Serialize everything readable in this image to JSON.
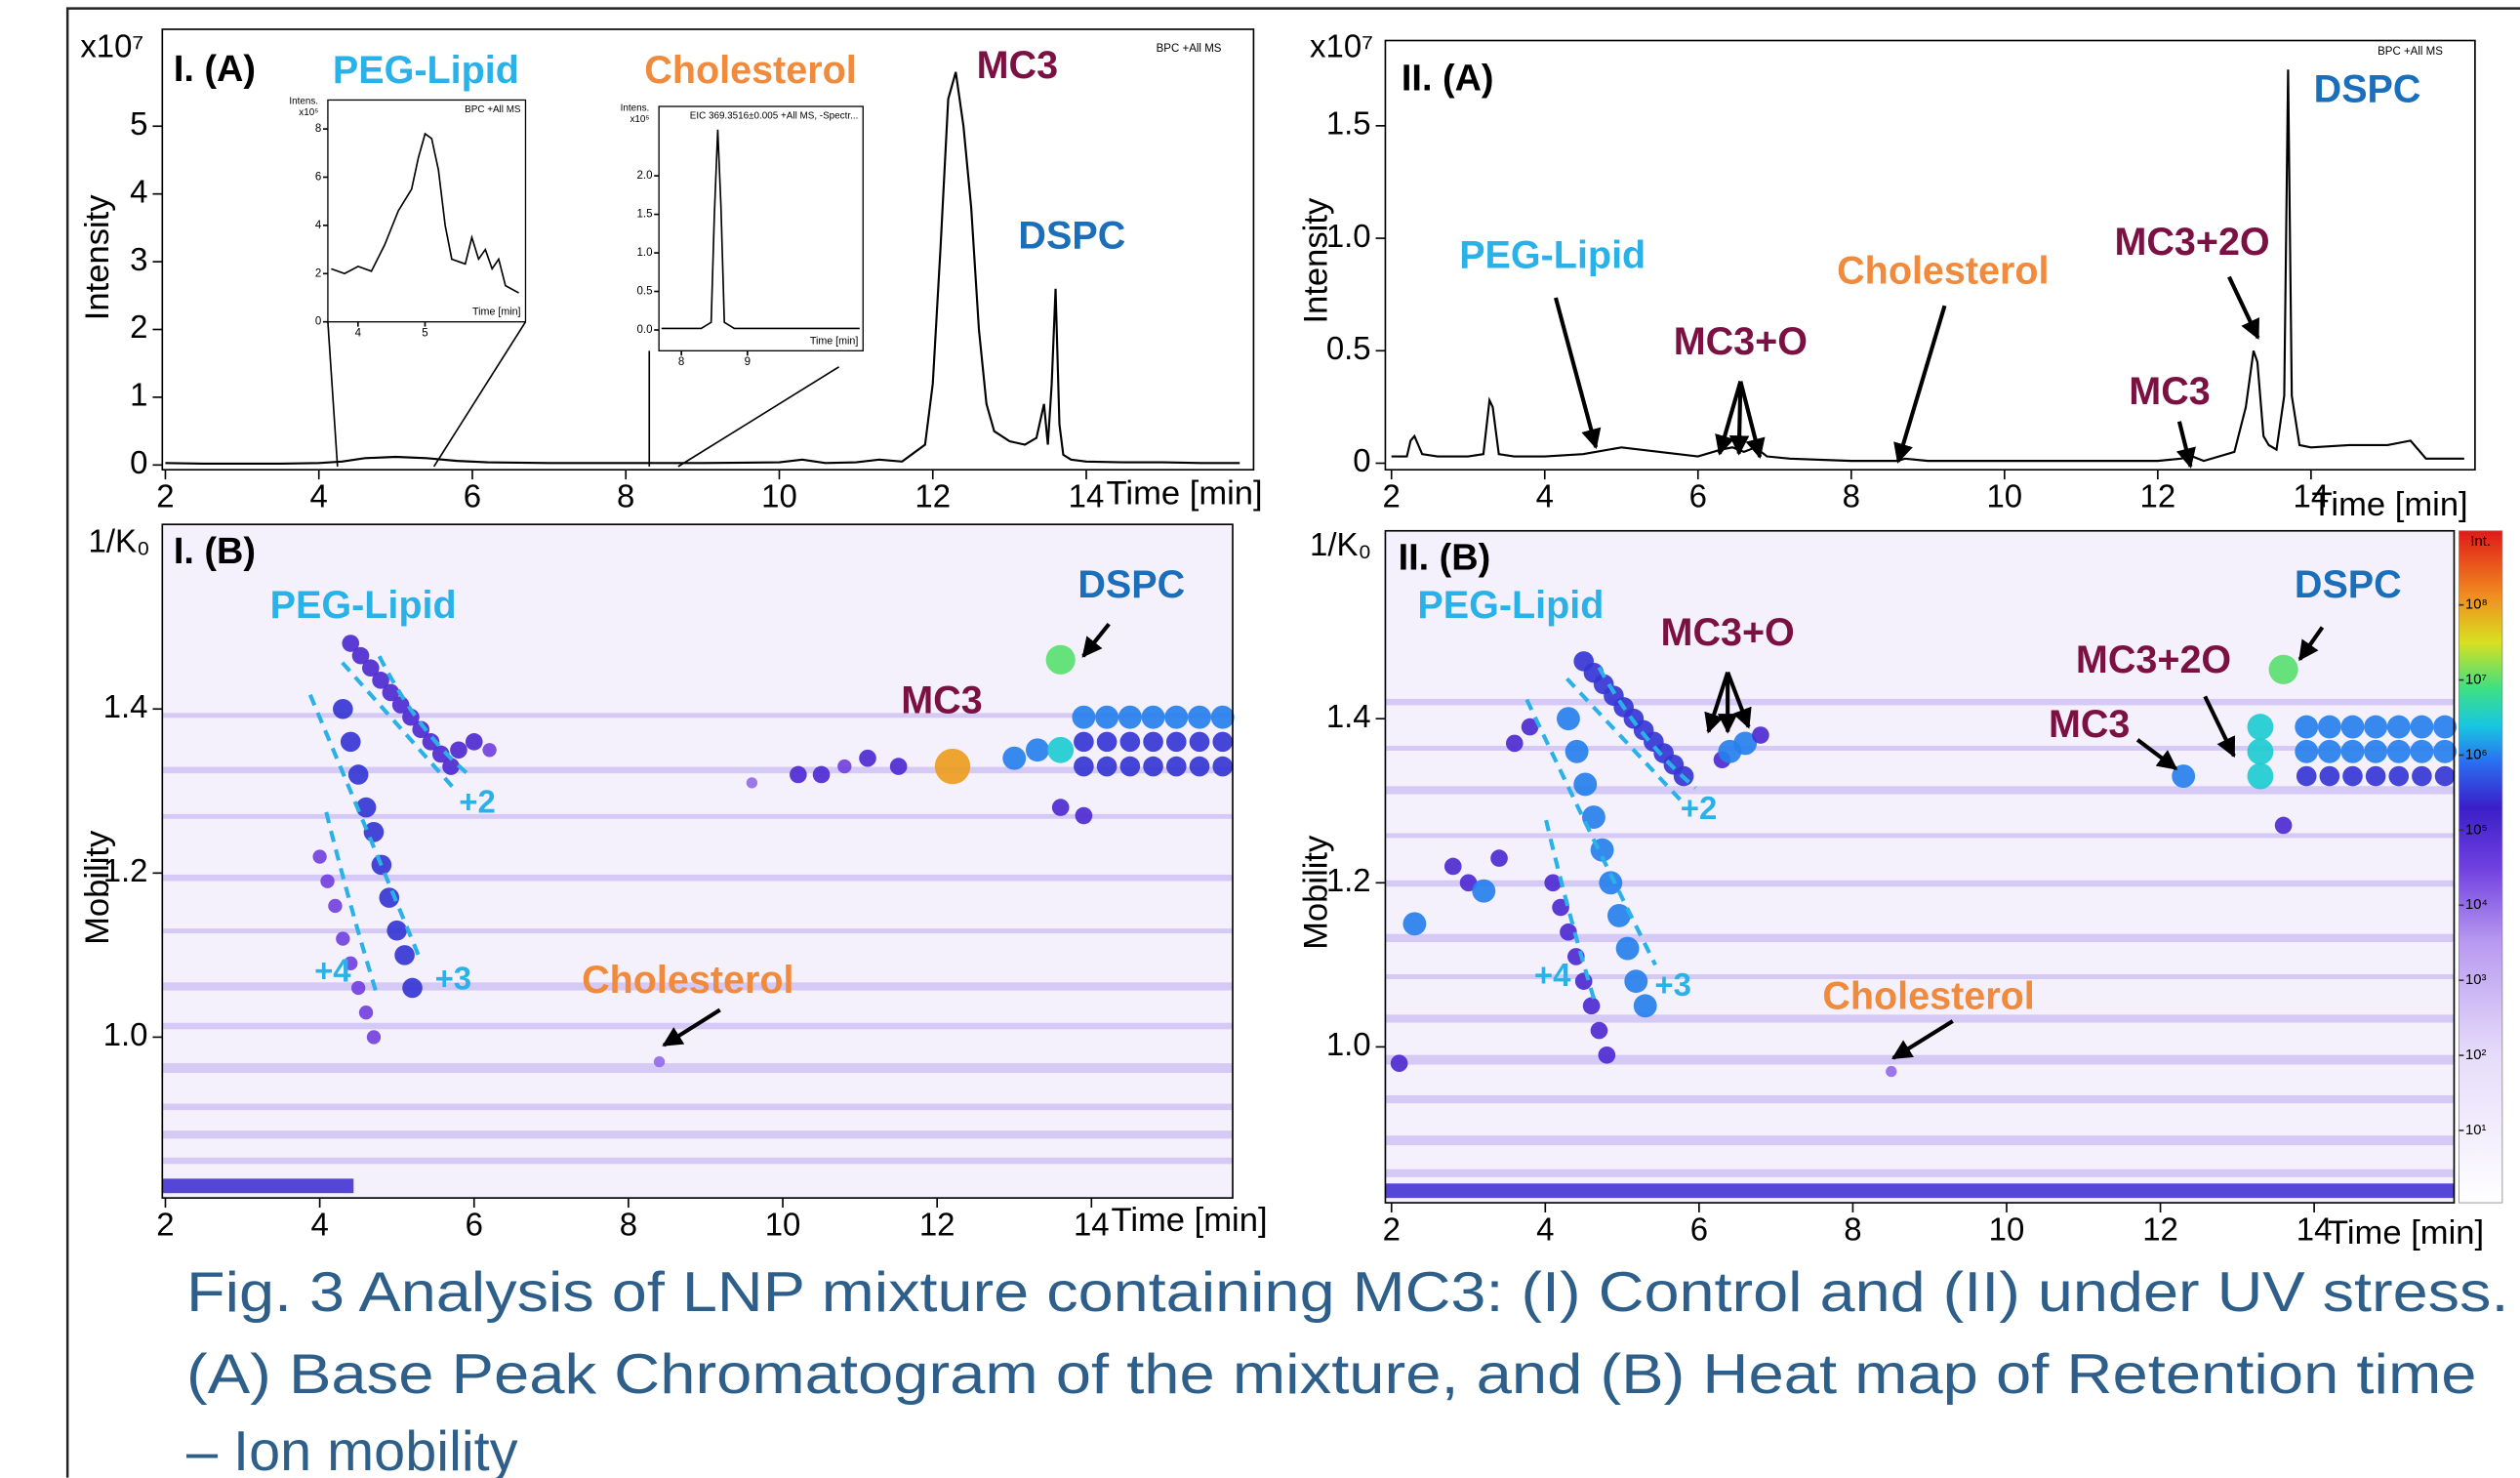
{
  "chart_data": [
    {
      "type": "line",
      "title": "I. (A)",
      "y_unit": "x10⁷",
      "ylabel": "Intensity",
      "xlabel": "Time [min]",
      "note": "BPC +All MS",
      "color": "#000000",
      "xlim": [
        1.96,
        16.18
      ],
      "ylim": [
        -0.07,
        6.43
      ],
      "xticks": [
        2,
        4,
        6,
        8,
        10,
        12,
        14
      ],
      "yticks": [
        0,
        1,
        2,
        3,
        4,
        5
      ],
      "x": [
        2,
        2.5,
        3,
        3.5,
        4,
        4.3,
        4.6,
        5,
        5.4,
        5.8,
        6.2,
        7,
        8,
        8.4,
        9,
        10,
        10.3,
        10.6,
        11,
        11.3,
        11.6,
        11.9,
        12.0,
        12.1,
        12.2,
        12.3,
        12.4,
        12.5,
        12.6,
        12.7,
        12.8,
        13.0,
        13.2,
        13.35,
        13.45,
        13.5,
        13.55,
        13.6,
        13.65,
        13.7,
        13.8,
        14,
        14.5,
        15,
        15.5,
        16
      ],
      "values": [
        0.03,
        0.02,
        0.02,
        0.02,
        0.03,
        0.05,
        0.1,
        0.12,
        0.1,
        0.06,
        0.04,
        0.03,
        0.03,
        0.03,
        0.03,
        0.04,
        0.08,
        0.03,
        0.04,
        0.08,
        0.05,
        0.3,
        1.2,
        3.2,
        5.4,
        5.8,
        5.0,
        3.8,
        2.0,
        0.9,
        0.5,
        0.35,
        0.3,
        0.4,
        0.9,
        0.3,
        1.2,
        2.6,
        0.6,
        0.15,
        0.08,
        0.05,
        0.04,
        0.04,
        0.03,
        0.03
      ],
      "annotations": [
        {
          "text": "PEG-Lipid",
          "color": "#2ab2e8"
        },
        {
          "text": "Cholesterol",
          "color": "#f08a3c"
        },
        {
          "text": "MC3",
          "color": "#7a1142"
        },
        {
          "text": "DSPC",
          "color": "#1b6fba"
        }
      ]
    },
    {
      "type": "heatmap",
      "title": "I. (B)",
      "y_unit": "1/K₀",
      "ylabel": "Mobility",
      "xlabel": "Time [min]",
      "xlim": [
        1.96,
        15.83
      ],
      "ylim": [
        0.804,
        1.625
      ],
      "xticks": [
        2,
        4,
        6,
        8,
        10,
        12,
        14
      ],
      "yticks": [
        {
          "value": 1,
          "label": "1.0"
        },
        1.2,
        1.4
      ],
      "x": [
        4.4,
        4.53,
        4.66,
        4.79,
        4.92,
        5.05,
        5.18,
        5.31,
        5.44,
        5.57,
        5.7,
        4.3,
        4.4,
        4.5,
        4.6,
        4.7,
        4.8,
        4.9,
        5.0,
        5.1,
        5.2,
        4.0,
        4.1,
        4.2,
        4.3,
        4.4,
        4.5,
        4.6,
        4.7,
        5.8,
        6.0,
        6.2,
        9.6,
        10.2,
        10.5,
        10.8,
        11.1,
        11.5,
        12.2,
        13.0,
        13.3,
        13.6,
        13.6,
        13.6,
        13.9,
        8.4,
        13.9,
        14.2,
        14.5,
        14.8,
        15.1,
        15.4,
        15.7,
        13.9,
        14.2,
        14.5,
        14.8,
        15.1,
        15.4,
        15.7,
        13.9,
        14.2,
        14.5,
        14.8,
        15.1,
        15.4,
        15.7
      ],
      "values": [
        1.48,
        1.465,
        1.45,
        1.435,
        1.42,
        1.405,
        1.39,
        1.375,
        1.36,
        1.345,
        1.33,
        1.4,
        1.36,
        1.32,
        1.28,
        1.25,
        1.21,
        1.17,
        1.13,
        1.1,
        1.06,
        1.22,
        1.19,
        1.16,
        1.12,
        1.09,
        1.06,
        1.03,
        1.0,
        1.35,
        1.36,
        1.35,
        1.31,
        1.32,
        1.32,
        1.33,
        1.34,
        1.33,
        1.33,
        1.34,
        1.35,
        1.46,
        1.35,
        1.28,
        1.27,
        0.97,
        1.39,
        1.39,
        1.39,
        1.39,
        1.39,
        1.39,
        1.39,
        1.36,
        1.36,
        1.36,
        1.36,
        1.36,
        1.36,
        1.36,
        1.33,
        1.33,
        1.33,
        1.33,
        1.33,
        1.33,
        1.33
      ],
      "intensity": [
        100000,
        100000,
        100000,
        100000,
        100000,
        100000,
        100000,
        100000,
        100000,
        100000,
        100000,
        300000,
        300000,
        300000,
        300000,
        300000,
        300000,
        300000,
        300000,
        300000,
        300000,
        30000,
        30000,
        30000,
        30000,
        30000,
        30000,
        30000,
        30000,
        100000,
        100000,
        30000,
        10000,
        100000,
        100000,
        30000,
        100000,
        100000,
        100000000,
        1000000,
        1000000,
        10000000,
        3000000,
        100000,
        100000,
        10000,
        1000000,
        1000000,
        1000000,
        1000000,
        1000000,
        1000000,
        1000000,
        300000,
        300000,
        300000,
        300000,
        300000,
        300000,
        300000,
        300000,
        300000,
        300000,
        300000,
        300000,
        300000,
        300000
      ],
      "annotations": [
        {
          "text": "PEG-Lipid",
          "color": "#2ab2e8"
        },
        {
          "text": "+2",
          "color": "#2ab2e8"
        },
        {
          "text": "+3",
          "color": "#2ab2e8"
        },
        {
          "text": "+4",
          "color": "#2ab2e8"
        },
        {
          "text": "DSPC",
          "color": "#1b6fba"
        },
        {
          "text": "MC3",
          "color": "#7a1142"
        },
        {
          "text": "Cholesterol",
          "color": "#f08a3c"
        }
      ]
    },
    {
      "type": "line",
      "title": "II. (A)",
      "y_unit": "x10⁷",
      "ylabel": "Intensity",
      "xlabel": "Time [min]",
      "note": "BPC +All MS",
      "color": "#000000",
      "xlim": [
        1.92,
        16.14
      ],
      "ylim": [
        -0.029,
        1.879
      ],
      "xticks": [
        2,
        4,
        6,
        8,
        10,
        12,
        14
      ],
      "yticks": [
        0,
        0.5,
        {
          "value": 1,
          "label": "1.0"
        },
        1.5
      ],
      "x": [
        2,
        2.2,
        2.25,
        2.3,
        2.4,
        2.6,
        3.0,
        3.2,
        3.28,
        3.32,
        3.4,
        3.6,
        4.0,
        4.5,
        5.0,
        5.5,
        6.0,
        6.3,
        6.45,
        6.6,
        6.75,
        6.9,
        7.2,
        8,
        8.6,
        8.7,
        9,
        10,
        11,
        12,
        12.3,
        12.45,
        12.6,
        13.0,
        13.15,
        13.25,
        13.3,
        13.38,
        13.45,
        13.55,
        13.65,
        13.7,
        13.75,
        13.85,
        14,
        14.5,
        15,
        15.3,
        15.5,
        16
      ],
      "values": [
        0.03,
        0.03,
        0.1,
        0.12,
        0.04,
        0.03,
        0.03,
        0.04,
        0.28,
        0.25,
        0.04,
        0.03,
        0.03,
        0.04,
        0.07,
        0.05,
        0.03,
        0.06,
        0.07,
        0.05,
        0.07,
        0.03,
        0.02,
        0.01,
        0.01,
        0.02,
        0.01,
        0.01,
        0.01,
        0.01,
        0.02,
        0.03,
        0.01,
        0.05,
        0.25,
        0.5,
        0.45,
        0.12,
        0.08,
        0.06,
        0.3,
        1.75,
        0.3,
        0.08,
        0.07,
        0.08,
        0.08,
        0.1,
        0.02,
        0.02
      ],
      "annotations": [
        {
          "text": "PEG-Lipid",
          "color": "#2ab2e8"
        },
        {
          "text": "MC3+O",
          "color": "#7a1142"
        },
        {
          "text": "Cholesterol",
          "color": "#f08a3c"
        },
        {
          "text": "MC3+2O",
          "color": "#7a1142"
        },
        {
          "text": "MC3",
          "color": "#7a1142"
        },
        {
          "text": "DSPC",
          "color": "#1b6fba"
        }
      ]
    },
    {
      "type": "heatmap",
      "title": "II. (B)",
      "y_unit": "1/K₀",
      "ylabel": "Mobility",
      "xlabel": "Time [min]",
      "xlim": [
        1.92,
        15.82
      ],
      "ylim": [
        0.81,
        1.629
      ],
      "xticks": [
        2,
        4,
        6,
        8,
        10,
        12,
        14
      ],
      "yticks": [
        {
          "value": 1,
          "label": "1.0"
        },
        1.2,
        1.4
      ],
      "x": [
        4.5,
        4.63,
        4.76,
        4.89,
        5.02,
        5.15,
        5.28,
        5.41,
        5.54,
        5.67,
        5.8,
        4.3,
        4.41,
        4.52,
        4.63,
        4.74,
        4.85,
        4.96,
        5.07,
        5.18,
        5.3,
        4.1,
        4.2,
        4.3,
        4.4,
        4.5,
        4.6,
        4.7,
        4.8,
        2.3,
        2.8,
        3.0,
        3.2,
        3.4,
        2.1,
        6.3,
        6.4,
        6.6,
        6.8,
        12.3,
        13.3,
        13.3,
        13.3,
        13.6,
        13.6,
        8.5,
        3.8,
        3.6,
        13.9,
        14.2,
        14.5,
        14.8,
        15.1,
        15.4,
        15.7,
        13.9,
        14.2,
        14.5,
        14.8,
        15.1,
        15.4,
        15.7,
        13.9,
        14.2,
        14.5,
        14.8,
        15.1,
        15.4,
        15.7
      ],
      "values": [
        1.47,
        1.456,
        1.442,
        1.428,
        1.414,
        1.4,
        1.386,
        1.372,
        1.358,
        1.344,
        1.33,
        1.4,
        1.36,
        1.32,
        1.28,
        1.24,
        1.2,
        1.16,
        1.12,
        1.08,
        1.05,
        1.2,
        1.17,
        1.14,
        1.11,
        1.08,
        1.05,
        1.02,
        0.99,
        1.15,
        1.22,
        1.2,
        1.19,
        1.23,
        0.98,
        1.35,
        1.36,
        1.37,
        1.38,
        1.33,
        1.39,
        1.36,
        1.33,
        1.46,
        1.27,
        0.97,
        1.39,
        1.37,
        1.39,
        1.39,
        1.39,
        1.39,
        1.39,
        1.39,
        1.39,
        1.36,
        1.36,
        1.36,
        1.36,
        1.36,
        1.36,
        1.36,
        1.33,
        1.33,
        1.33,
        1.33,
        1.33,
        1.33,
        1.33
      ],
      "intensity": [
        300000,
        300000,
        300000,
        300000,
        300000,
        300000,
        300000,
        300000,
        300000,
        300000,
        300000,
        1000000,
        1000000,
        1000000,
        1000000,
        1000000,
        1000000,
        1000000,
        1000000,
        1000000,
        1000000,
        100000,
        100000,
        100000,
        100000,
        100000,
        100000,
        100000,
        100000,
        1000000,
        100000,
        100000,
        1000000,
        100000,
        100000,
        100000,
        1000000,
        1000000,
        100000,
        1000000,
        3000000,
        3000000,
        3000000,
        10000000,
        100000,
        10000,
        100000,
        100000,
        1000000,
        1000000,
        1000000,
        1000000,
        1000000,
        1000000,
        1000000,
        1000000,
        1000000,
        1000000,
        1000000,
        1000000,
        1000000,
        1000000,
        300000,
        300000,
        300000,
        300000,
        300000,
        300000,
        300000
      ],
      "colorbar": {
        "label": "Int.",
        "ticks": [
          {
            "value": 10,
            "label": "10¹"
          },
          {
            "value": 100,
            "label": "10²"
          },
          {
            "value": 1000,
            "label": "10³"
          },
          {
            "value": 10000,
            "label": "10⁴"
          },
          {
            "value": 100000,
            "label": "10⁵"
          },
          {
            "value": 1000000,
            "label": "10⁶"
          },
          {
            "value": 10000000,
            "label": "10⁷"
          },
          {
            "value": 100000000,
            "label": "10⁸"
          }
        ]
      },
      "annotations": [
        {
          "text": "PEG-Lipid",
          "color": "#2ab2e8"
        },
        {
          "text": "MC3+O",
          "color": "#7a1142"
        },
        {
          "text": "+2",
          "color": "#2ab2e8"
        },
        {
          "text": "+3",
          "color": "#2ab2e8"
        },
        {
          "text": "+4",
          "color": "#2ab2e8"
        },
        {
          "text": "DSPC",
          "color": "#1b6fba"
        },
        {
          "text": "MC3+2O",
          "color": "#7a1142"
        },
        {
          "text": "MC3",
          "color": "#7a1142"
        },
        {
          "text": "Cholesterol",
          "color": "#f08a3c"
        }
      ]
    },
    {
      "type": "line",
      "y_unit": "x10⁵",
      "ylabel": "Intens.",
      "xlabel": "Time [min]",
      "note": "BPC +All MS",
      "color": "#000000",
      "xlim": [
        3.55,
        6.5
      ],
      "ylim": [
        0,
        9.2
      ],
      "xticks": [
        4,
        5
      ],
      "yticks": [
        0,
        2,
        4,
        6,
        8
      ],
      "x": [
        3.6,
        3.8,
        4.0,
        4.2,
        4.4,
        4.6,
        4.8,
        4.9,
        5.0,
        5.1,
        5.2,
        5.3,
        5.4,
        5.5,
        5.6,
        5.7,
        5.8,
        5.9,
        6.0,
        6.1,
        6.2,
        6.4
      ],
      "values": [
        2.2,
        2.0,
        2.3,
        2.1,
        3.2,
        4.6,
        5.5,
        6.8,
        7.8,
        7.6,
        6.3,
        4.0,
        2.6,
        2.5,
        2.4,
        3.5,
        2.6,
        3.0,
        2.2,
        2.6,
        1.5,
        1.2
      ]
    },
    {
      "type": "line",
      "y_unit": "x10⁵",
      "ylabel": "Intens.",
      "xlabel": "Time [min]",
      "note": "EIC 369.3516±0.005 +All MS, -Spectr...",
      "color": "#000000",
      "xlim": [
        7.66,
        10.75
      ],
      "ylim": [
        -0.27,
        2.9
      ],
      "xticks": [
        8,
        9
      ],
      "yticks": [
        {
          "value": 0,
          "label": "0.0"
        },
        0.5,
        {
          "value": 1,
          "label": "1.0"
        },
        1.5,
        {
          "value": 2,
          "label": "2.0"
        }
      ],
      "x": [
        7.7,
        8.0,
        8.3,
        8.45,
        8.5,
        8.55,
        8.6,
        8.65,
        8.8,
        9.2,
        9.6,
        10.0,
        10.7
      ],
      "values": [
        0.02,
        0.02,
        0.02,
        0.1,
        1.5,
        2.6,
        1.6,
        0.1,
        0.02,
        0.02,
        0.02,
        0.02,
        0.02
      ]
    }
  ],
  "caption": [
    "Fig. 3 Analysis of LNP mixture containing MC3: (I) Control and (II) under UV stress.",
    "(A) Base Peak Chromatogram of the mixture, and (B) Heat map of Retention time",
    "– Ion mobility"
  ]
}
